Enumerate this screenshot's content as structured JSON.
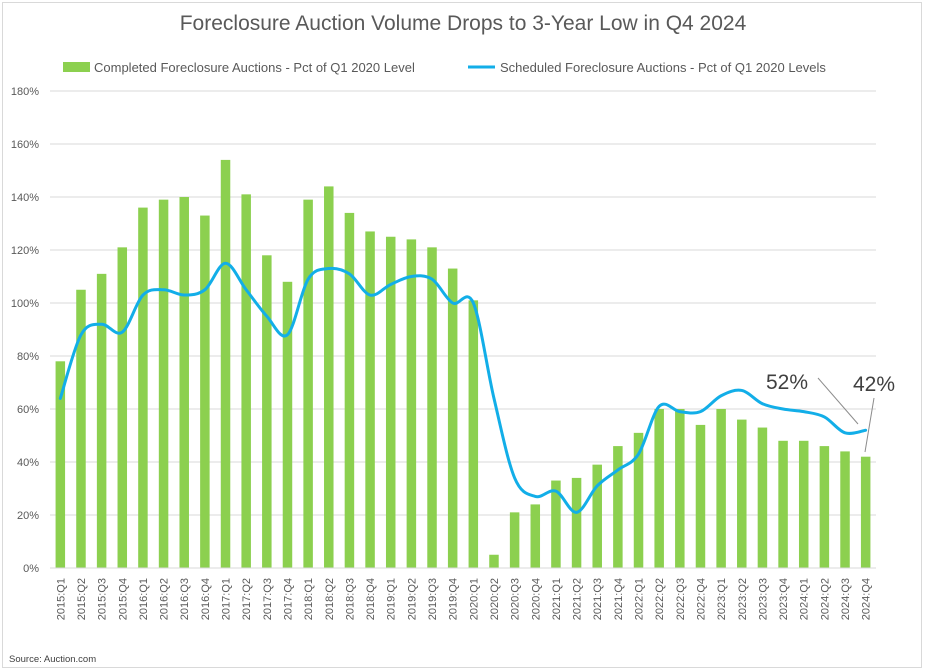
{
  "chart_data": {
    "type": "bar+line",
    "title": "Foreclosure Auction Volume Drops to 3-Year Low in Q4 2024",
    "categories": [
      "2015:Q1",
      "2015:Q2",
      "2015:Q3",
      "2015:Q4",
      "2016:Q1",
      "2016:Q2",
      "2016:Q3",
      "2016:Q4",
      "2017:Q1",
      "2017:Q2",
      "2017:Q3",
      "2017:Q4",
      "2018:Q1",
      "2018:Q2",
      "2018:Q3",
      "2018:Q4",
      "2019:Q1",
      "2019:Q2",
      "2019:Q3",
      "2019:Q4",
      "2020:Q1",
      "2020:Q2",
      "2020:Q3",
      "2020:Q4",
      "2021:Q1",
      "2021:Q2",
      "2021:Q3",
      "2021:Q4",
      "2022:Q1",
      "2022:Q2",
      "2022:Q3",
      "2022:Q4",
      "2023:Q1",
      "2023:Q2",
      "2023:Q3",
      "2023:Q4",
      "2024:Q1",
      "2024:Q2",
      "2024:Q3",
      "2024:Q4"
    ],
    "series": [
      {
        "name": "Completed Foreclosure Auctions - Pct of Q1 2020 Level",
        "kind": "bar",
        "color": "#8cd04f",
        "values": [
          78,
          105,
          111,
          121,
          136,
          139,
          140,
          133,
          154,
          141,
          118,
          108,
          139,
          144,
          134,
          127,
          125,
          124,
          121,
          113,
          101,
          5,
          21,
          24,
          33,
          34,
          39,
          46,
          51,
          60,
          60,
          54,
          60,
          56,
          53,
          48,
          48,
          46,
          44,
          42
        ]
      },
      {
        "name": "Scheduled Foreclosure Auctions - Pct of Q1 2020 Levels",
        "kind": "line",
        "color": "#12aee8",
        "values": [
          64,
          88,
          92,
          89,
          103,
          105,
          103,
          105,
          115,
          105,
          95,
          88,
          109,
          113,
          111,
          103,
          107,
          110,
          109,
          100,
          100,
          64,
          34,
          27,
          29,
          21,
          31,
          37,
          43,
          61,
          59,
          59,
          65,
          67,
          62,
          60,
          59,
          57,
          51,
          52
        ]
      }
    ],
    "ylim": [
      0,
      180
    ],
    "yticks": [
      "0%",
      "20%",
      "40%",
      "60%",
      "80%",
      "100%",
      "120%",
      "140%",
      "160%",
      "180%"
    ],
    "annotations": [
      "52%",
      "42%"
    ],
    "source": "Source: Auction.com"
  }
}
